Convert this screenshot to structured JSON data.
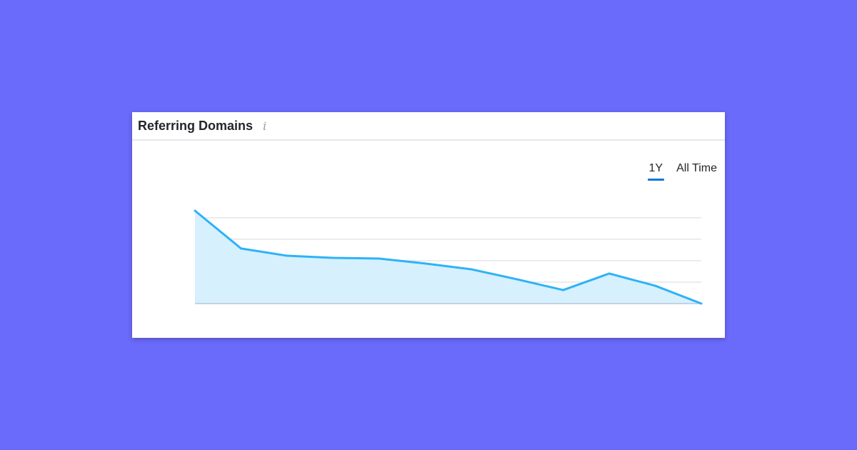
{
  "card": {
    "title": "Referring Domains",
    "info_icon": "info-icon"
  },
  "tabs": [
    {
      "label": "1Y",
      "active": true
    },
    {
      "label": "All Time",
      "active": false
    }
  ],
  "colors": {
    "background": "#6a6afb",
    "line": "#2fb2f7",
    "fill": "#d5effd",
    "active_tab": "#1a73d9"
  },
  "chart_data": {
    "type": "area",
    "title": "",
    "xlabel": "",
    "ylabel": "",
    "values": [
      4.33,
      2.57,
      2.23,
      2.13,
      2.1,
      1.87,
      1.6,
      1.13,
      0.63,
      1.4,
      0.83,
      0
    ],
    "ylim": [
      0,
      4.33
    ],
    "gridlines": [
      1,
      2,
      3,
      4
    ],
    "grid": true,
    "tick_labels_shown": false
  }
}
